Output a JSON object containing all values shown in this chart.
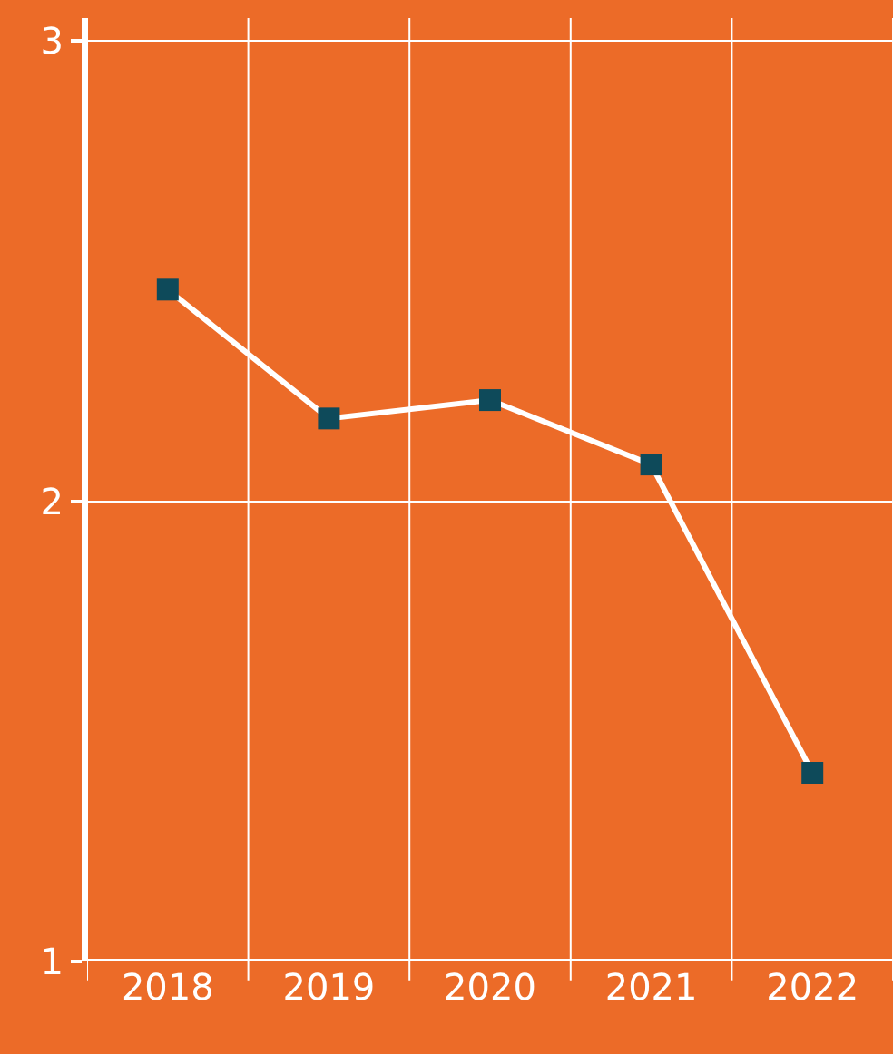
{
  "chart_data": {
    "type": "line",
    "categories": [
      "2018",
      "2019",
      "2020",
      "2021",
      "2022"
    ],
    "series": [
      {
        "color": "#ffffff",
        "values": [
          2.46,
          2.18,
          2.22,
          2.08,
          1.41
        ]
      }
    ],
    "marker": "square",
    "line_style": "solid",
    "grid": true,
    "legend": false,
    "ylim": [
      1,
      3.05
    ],
    "yticks": [
      1,
      2,
      3
    ]
  }
}
